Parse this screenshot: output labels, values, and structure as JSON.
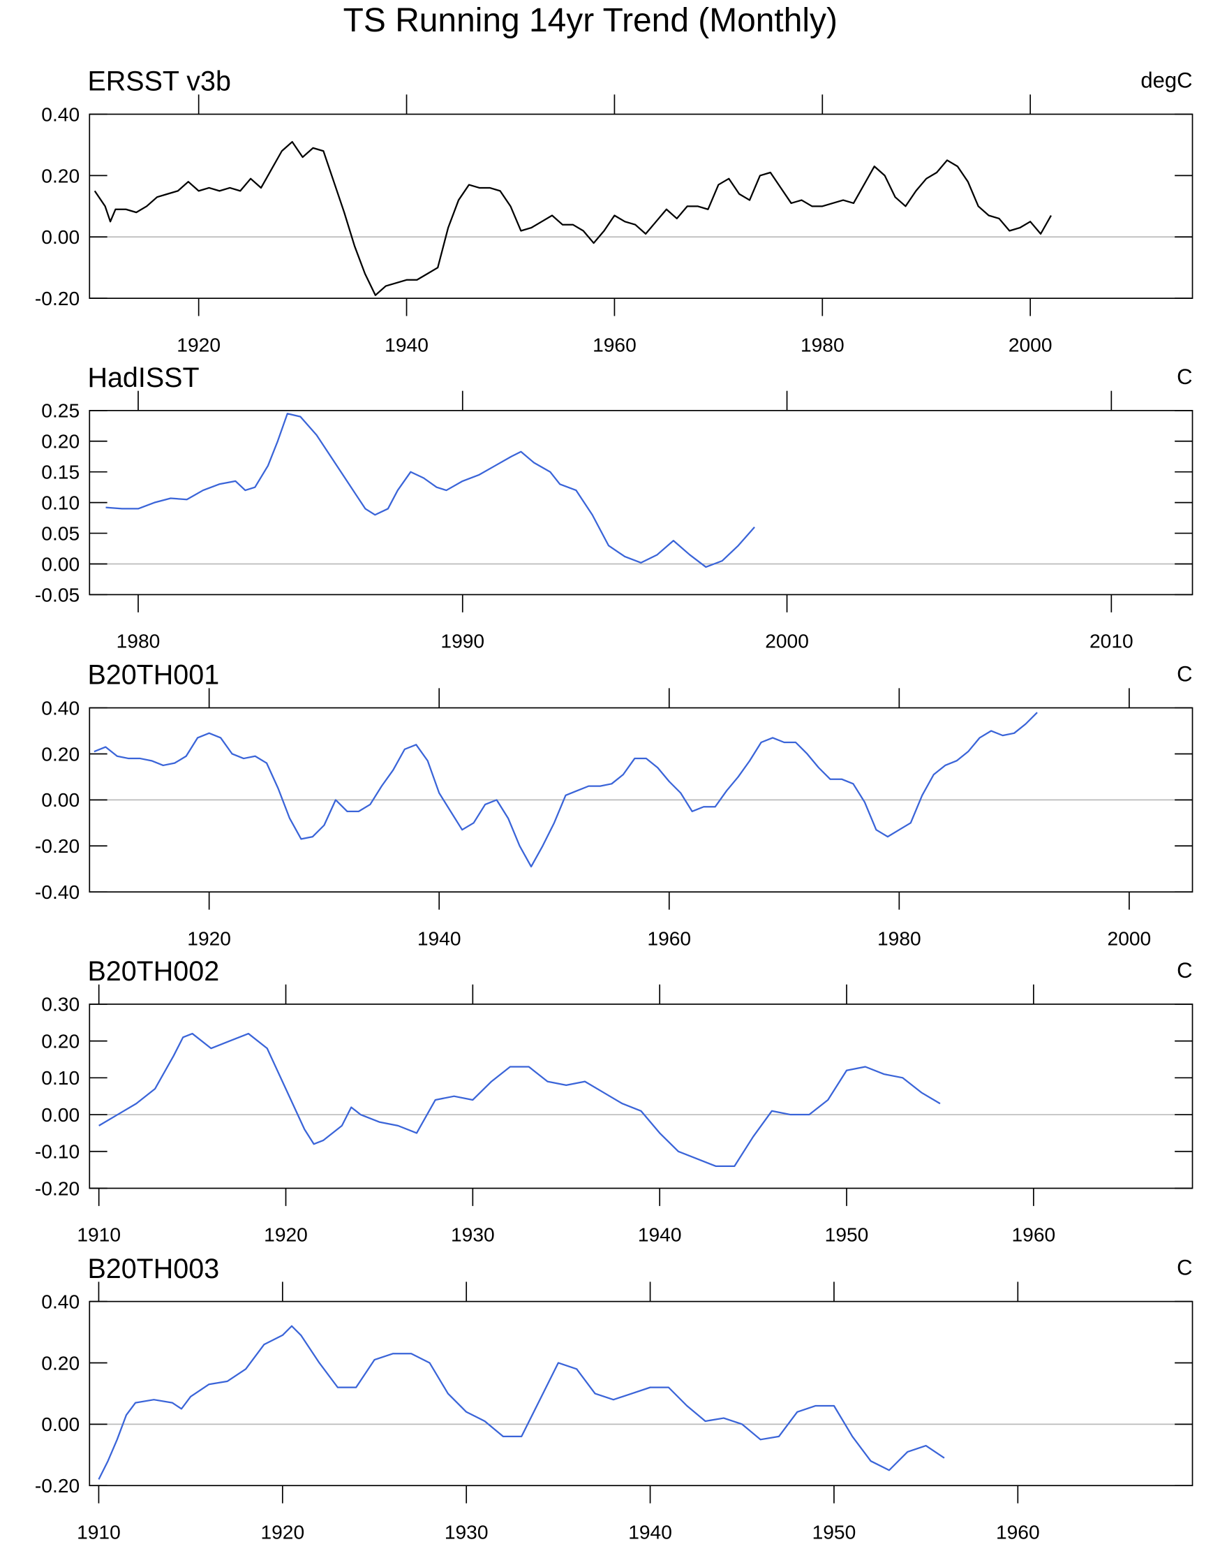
{
  "title": "TS Running 14yr Trend (Monthly)",
  "chart_data": [
    {
      "type": "line",
      "title": "ERSST v3b",
      "units": "degC",
      "color": "#000000",
      "zero_line": true,
      "xlim": [
        1909.5,
        2015.6
      ],
      "xticks": [
        1920,
        1940,
        1960,
        1980,
        2000
      ],
      "ylim": [
        -0.2,
        0.4
      ],
      "yticks": [
        {
          "value": -0.2,
          "label": "-0.20"
        },
        {
          "value": 0,
          "label": "0.00"
        },
        {
          "value": 0.2,
          "label": "0.20"
        },
        {
          "value": 0.4,
          "label": "0.40"
        }
      ],
      "x": [
        1910,
        1911,
        1911.5,
        1912,
        1913,
        1914,
        1915,
        1916,
        1917,
        1918,
        1919,
        1920,
        1921,
        1922,
        1923,
        1924,
        1925,
        1926,
        1927,
        1928,
        1929,
        1930,
        1931,
        1932,
        1933,
        1934,
        1935,
        1936,
        1937,
        1938,
        1939,
        1940,
        1941,
        1942,
        1943,
        1944,
        1945,
        1946,
        1947,
        1948,
        1949,
        1950,
        1951,
        1952,
        1953,
        1954,
        1955,
        1956,
        1957,
        1958,
        1959,
        1960,
        1961,
        1962,
        1963,
        1964,
        1965,
        1966,
        1967,
        1968,
        1969,
        1970,
        1971,
        1972,
        1973,
        1974,
        1975,
        1976,
        1977,
        1978,
        1979,
        1980,
        1981,
        1982,
        1983,
        1984,
        1985,
        1986,
        1987,
        1988,
        1989,
        1990,
        1991,
        1992,
        1993,
        1994,
        1995,
        1996,
        1997,
        1998,
        1999,
        2000,
        2001,
        2002
      ],
      "values": [
        0.15,
        0.1,
        0.05,
        0.09,
        0.09,
        0.08,
        0.1,
        0.13,
        0.14,
        0.15,
        0.18,
        0.15,
        0.16,
        0.15,
        0.16,
        0.15,
        0.19,
        0.16,
        0.22,
        0.28,
        0.31,
        0.26,
        0.29,
        0.28,
        0.18,
        0.08,
        -0.03,
        -0.12,
        -0.19,
        -0.16,
        -0.15,
        -0.14,
        -0.14,
        -0.12,
        -0.1,
        0.03,
        0.12,
        0.17,
        0.16,
        0.16,
        0.15,
        0.1,
        0.02,
        0.03,
        0.05,
        0.07,
        0.04,
        0.04,
        0.02,
        -0.02,
        0.02,
        0.07,
        0.05,
        0.04,
        0.01,
        0.05,
        0.09,
        0.06,
        0.1,
        0.1,
        0.09,
        0.17,
        0.19,
        0.14,
        0.12,
        0.2,
        0.21,
        0.16,
        0.11,
        0.12,
        0.1,
        0.1,
        0.11,
        0.12,
        0.11,
        0.17,
        0.23,
        0.2,
        0.13,
        0.1,
        0.15,
        0.19,
        0.21,
        0.25,
        0.23,
        0.18,
        0.1,
        0.07,
        0.06,
        0.02,
        0.03,
        0.05,
        0.01,
        0.07
      ]
    },
    {
      "type": "line",
      "title": "HadISST",
      "units": "C",
      "color": "#3a64d8",
      "zero_line": true,
      "xlim": [
        1978.5,
        2012.5
      ],
      "xticks": [
        1980,
        1990,
        2000,
        2010
      ],
      "ylim": [
        -0.05,
        0.25
      ],
      "yticks": [
        {
          "value": -0.05,
          "label": "-0.05"
        },
        {
          "value": 0,
          "label": "0.00"
        },
        {
          "value": 0.05,
          "label": "0.05"
        },
        {
          "value": 0.1,
          "label": "0.10"
        },
        {
          "value": 0.15,
          "label": "0.15"
        },
        {
          "value": 0.2,
          "label": "0.20"
        },
        {
          "value": 0.25,
          "label": "0.25"
        }
      ],
      "x": [
        1979,
        1979.5,
        1980,
        1980.5,
        1981,
        1981.5,
        1982,
        1982.5,
        1983,
        1983.3,
        1983.6,
        1984,
        1984.3,
        1984.6,
        1985,
        1985.5,
        1986,
        1986.5,
        1987,
        1987.3,
        1987.7,
        1988,
        1988.4,
        1988.8,
        1989.2,
        1989.5,
        1990,
        1990.5,
        1991,
        1991.5,
        1991.8,
        1992.2,
        1992.7,
        1993,
        1993.5,
        1994,
        1994.5,
        1995,
        1995.5,
        1996,
        1996.5,
        1997,
        1997.5,
        1998,
        1998.5,
        1999
      ],
      "values": [
        0.092,
        0.09,
        0.09,
        0.1,
        0.107,
        0.105,
        0.12,
        0.13,
        0.135,
        0.12,
        0.125,
        0.16,
        0.2,
        0.245,
        0.24,
        0.21,
        0.17,
        0.13,
        0.09,
        0.08,
        0.09,
        0.12,
        0.15,
        0.14,
        0.125,
        0.12,
        0.135,
        0.145,
        0.16,
        0.175,
        0.183,
        0.165,
        0.15,
        0.13,
        0.12,
        0.08,
        0.03,
        0.012,
        0.002,
        0.015,
        0.038,
        0.015,
        -0.005,
        0.005,
        0.03,
        0.06
      ]
    },
    {
      "type": "line",
      "title": "B20TH001",
      "units": "C",
      "color": "#3a64d8",
      "zero_line": true,
      "xlim": [
        1909.6,
        2005.5
      ],
      "xticks": [
        1920,
        1940,
        1960,
        1980,
        2000
      ],
      "ylim": [
        -0.4,
        0.4
      ],
      "yticks": [
        {
          "value": -0.4,
          "label": "-0.40"
        },
        {
          "value": -0.2,
          "label": "-0.20"
        },
        {
          "value": 0,
          "label": "0.00"
        },
        {
          "value": 0.2,
          "label": "0.20"
        },
        {
          "value": 0.4,
          "label": "0.40"
        }
      ],
      "x": [
        1910,
        1911,
        1912,
        1913,
        1914,
        1915,
        1916,
        1917,
        1918,
        1919,
        1920,
        1921,
        1922,
        1923,
        1924,
        1925,
        1926,
        1927,
        1928,
        1929,
        1930,
        1931,
        1932,
        1933,
        1934,
        1935,
        1936,
        1937,
        1938,
        1939,
        1940,
        1941,
        1942,
        1943,
        1944,
        1945,
        1946,
        1947,
        1948,
        1949,
        1950,
        1951,
        1952,
        1953,
        1954,
        1955,
        1956,
        1957,
        1958,
        1959,
        1960,
        1961,
        1962,
        1963,
        1964,
        1965,
        1966,
        1967,
        1968,
        1969,
        1970,
        1971,
        1972,
        1973,
        1974,
        1975,
        1976,
        1977,
        1978,
        1979,
        1980,
        1981,
        1982,
        1983,
        1984,
        1985,
        1986,
        1987,
        1988,
        1989,
        1990,
        1991,
        1992
      ],
      "values": [
        0.21,
        0.23,
        0.19,
        0.18,
        0.18,
        0.17,
        0.15,
        0.16,
        0.19,
        0.27,
        0.29,
        0.27,
        0.2,
        0.18,
        0.19,
        0.16,
        0.05,
        -0.08,
        -0.17,
        -0.16,
        -0.11,
        0.0,
        -0.05,
        -0.05,
        -0.02,
        0.06,
        0.13,
        0.22,
        0.24,
        0.17,
        0.03,
        -0.05,
        -0.13,
        -0.1,
        -0.02,
        0.0,
        -0.08,
        -0.2,
        -0.29,
        -0.2,
        -0.1,
        0.02,
        0.04,
        0.06,
        0.06,
        0.07,
        0.11,
        0.18,
        0.18,
        0.14,
        0.08,
        0.03,
        -0.05,
        -0.03,
        -0.03,
        0.04,
        0.1,
        0.17,
        0.25,
        0.27,
        0.25,
        0.25,
        0.2,
        0.14,
        0.09,
        0.09,
        0.07,
        -0.01,
        -0.13,
        -0.16,
        -0.13,
        -0.1,
        0.02,
        0.11,
        0.15,
        0.17,
        0.21,
        0.27,
        0.3,
        0.28,
        0.29,
        0.33,
        0.38
      ]
    },
    {
      "type": "line",
      "title": "B20TH002",
      "units": "C",
      "color": "#3a64d8",
      "zero_line": true,
      "xlim": [
        1909.5,
        1968.5
      ],
      "xticks": [
        1910,
        1920,
        1930,
        1940,
        1950,
        1960
      ],
      "ylim": [
        -0.2,
        0.3
      ],
      "yticks": [
        {
          "value": -0.2,
          "label": "-0.20"
        },
        {
          "value": -0.1,
          "label": "-0.10"
        },
        {
          "value": 0,
          "label": "0.00"
        },
        {
          "value": 0.1,
          "label": "0.10"
        },
        {
          "value": 0.2,
          "label": "0.20"
        },
        {
          "value": 0.3,
          "label": "0.30"
        }
      ],
      "x": [
        1910,
        1911,
        1912,
        1913,
        1914,
        1914.5,
        1915,
        1916,
        1917,
        1918,
        1919,
        1920,
        1921,
        1921.5,
        1922,
        1923,
        1923.5,
        1924,
        1925,
        1926,
        1927,
        1928,
        1929,
        1930,
        1931,
        1932,
        1933,
        1934,
        1935,
        1936,
        1937,
        1938,
        1939,
        1940,
        1941,
        1942,
        1943,
        1944,
        1945,
        1946,
        1947,
        1948,
        1949,
        1950,
        1951,
        1952,
        1953,
        1954,
        1955
      ],
      "values": [
        -0.03,
        0.0,
        0.03,
        0.07,
        0.16,
        0.21,
        0.22,
        0.18,
        0.2,
        0.22,
        0.18,
        0.07,
        -0.04,
        -0.08,
        -0.07,
        -0.03,
        0.02,
        0.0,
        -0.02,
        -0.03,
        -0.05,
        0.04,
        0.05,
        0.04,
        0.09,
        0.13,
        0.13,
        0.09,
        0.08,
        0.09,
        0.06,
        0.03,
        0.01,
        -0.05,
        -0.1,
        -0.12,
        -0.14,
        -0.14,
        -0.06,
        0.01,
        0.0,
        0.0,
        0.04,
        0.12,
        0.13,
        0.11,
        0.1,
        0.06,
        0.03
      ]
    },
    {
      "type": "line",
      "title": "B20TH003",
      "units": "C",
      "color": "#3a64d8",
      "zero_line": true,
      "xlim": [
        1909.5,
        1969.5
      ],
      "xticks": [
        1910,
        1920,
        1930,
        1940,
        1950,
        1960
      ],
      "ylim": [
        -0.2,
        0.4
      ],
      "yticks": [
        {
          "value": -0.2,
          "label": "-0.20"
        },
        {
          "value": 0,
          "label": "0.00"
        },
        {
          "value": 0.2,
          "label": "0.20"
        },
        {
          "value": 0.4,
          "label": "0.40"
        }
      ],
      "x": [
        1910,
        1910.5,
        1911,
        1911.5,
        1912,
        1913,
        1914,
        1914.5,
        1915,
        1916,
        1917,
        1918,
        1919,
        1920,
        1920.5,
        1921,
        1922,
        1923,
        1924,
        1925,
        1926,
        1927,
        1928,
        1929,
        1930,
        1931,
        1932,
        1933,
        1934,
        1935,
        1936,
        1937,
        1938,
        1939,
        1940,
        1941,
        1942,
        1943,
        1944,
        1945,
        1946,
        1947,
        1948,
        1949,
        1950,
        1951,
        1952,
        1953,
        1954,
        1955,
        1956
      ],
      "values": [
        -0.18,
        -0.12,
        -0.05,
        0.03,
        0.07,
        0.08,
        0.07,
        0.05,
        0.09,
        0.13,
        0.14,
        0.18,
        0.26,
        0.29,
        0.32,
        0.29,
        0.2,
        0.12,
        0.12,
        0.21,
        0.23,
        0.23,
        0.2,
        0.1,
        0.04,
        0.01,
        -0.04,
        -0.04,
        0.08,
        0.2,
        0.18,
        0.1,
        0.08,
        0.1,
        0.12,
        0.12,
        0.06,
        0.01,
        0.02,
        0.0,
        -0.05,
        -0.04,
        0.04,
        0.06,
        0.06,
        -0.04,
        -0.12,
        -0.15,
        -0.09,
        -0.07,
        -0.11
      ]
    }
  ]
}
